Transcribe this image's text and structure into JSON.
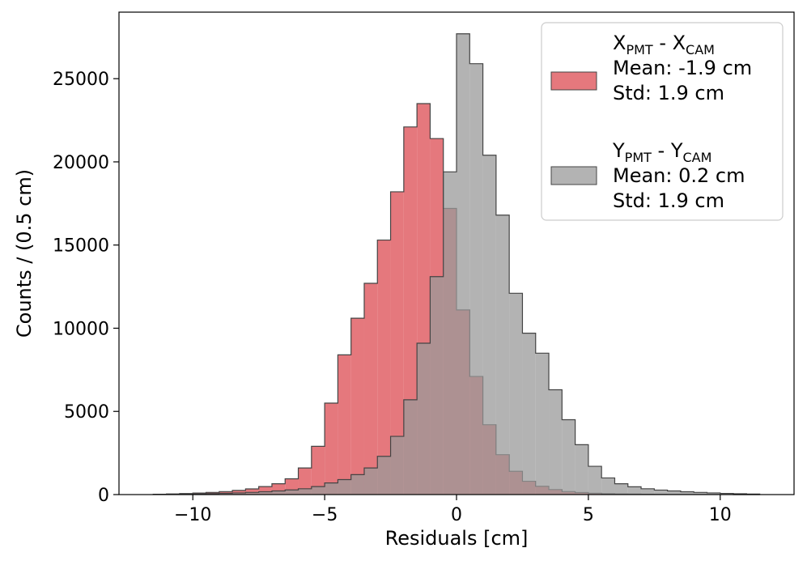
{
  "chart_data": {
    "type": "histogram",
    "xlabel": "Residuals [cm]",
    "ylabel": "Counts / (0.5 cm)",
    "xlim": [
      -12.8,
      12.8
    ],
    "ylim": [
      0,
      29000
    ],
    "xticks": [
      -10,
      -5,
      0,
      5,
      10
    ],
    "xtick_labels": [
      "−10",
      "−5",
      "0",
      "5",
      "10"
    ],
    "yticks": [
      0,
      5000,
      10000,
      15000,
      20000,
      25000
    ],
    "ytick_labels": [
      "0",
      "5000",
      "10000",
      "15000",
      "20000",
      "25000"
    ],
    "bin_edges": [
      -11.5,
      -11,
      -10.5,
      -10,
      -9.5,
      -9,
      -8.5,
      -8,
      -7.5,
      -7,
      -6.5,
      -6,
      -5.5,
      -5,
      -4.5,
      -4,
      -3.5,
      -3,
      -2.5,
      -2,
      -1.5,
      -1,
      -0.5,
      0,
      0.5,
      1,
      1.5,
      2,
      2.5,
      3,
      3.5,
      4,
      4.5,
      5,
      5.5,
      6,
      6.5,
      7,
      7.5,
      8,
      8.5,
      9,
      9.5,
      10,
      10.5,
      11,
      11.5
    ],
    "series": [
      {
        "name": "X_PMT - X_CAM",
        "label_main": "X",
        "label_sub": "PMT",
        "label_mid": " - X",
        "label_sub2": "CAM",
        "mean_text": "Mean: -1.9 cm",
        "std_text": "Std: 1.9 cm",
        "fill": "#e06066",
        "opacity": 0.85,
        "values": [
          20,
          40,
          60,
          90,
          130,
          180,
          250,
          340,
          480,
          650,
          950,
          1600,
          2900,
          5500,
          8400,
          10600,
          12700,
          15300,
          18200,
          22100,
          23500,
          21400,
          17200,
          11100,
          7100,
          4200,
          2400,
          1400,
          800,
          500,
          300,
          180,
          120,
          80,
          55,
          40,
          30,
          20,
          15,
          10,
          8,
          5,
          3,
          2,
          1,
          0
        ]
      },
      {
        "name": "Y_PMT - Y_CAM",
        "label_main": "Y",
        "label_sub": "PMT",
        "label_mid": " - Y",
        "label_sub2": "CAM",
        "mean_text": "Mean: 0.2 cm",
        "std_text": "Std: 1.9 cm",
        "fill": "#999999",
        "opacity": 0.75,
        "values": [
          10,
          20,
          30,
          40,
          60,
          80,
          100,
          130,
          170,
          220,
          280,
          350,
          480,
          700,
          900,
          1200,
          1600,
          2300,
          3500,
          5700,
          9100,
          13100,
          19400,
          27700,
          25900,
          20400,
          16800,
          12100,
          9700,
          8500,
          6300,
          4500,
          3000,
          1700,
          1000,
          650,
          470,
          350,
          270,
          220,
          170,
          130,
          100,
          70,
          50,
          30
        ]
      }
    ]
  },
  "colors": {
    "edge": "#444444",
    "legend_border": "#cccccc"
  }
}
